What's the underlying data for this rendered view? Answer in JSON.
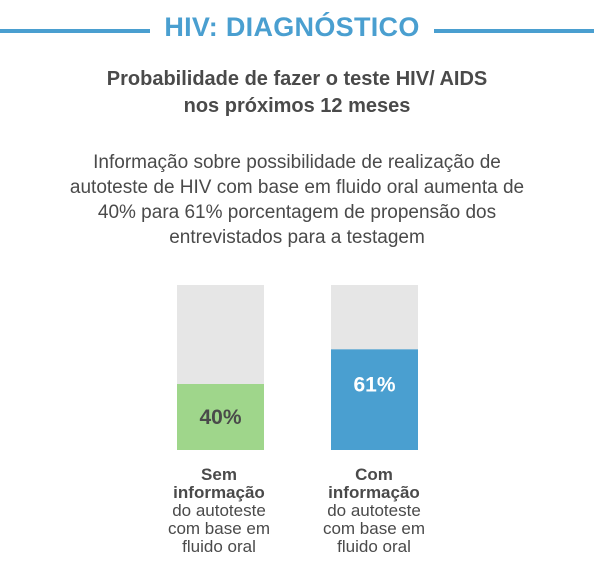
{
  "header": {
    "section_title": "HIV: DIAGNÓSTICO",
    "accent_color": "#4a9fd0"
  },
  "chart_data": {
    "type": "bar",
    "title_lines": [
      "Probabilidade de fazer o teste HIV/ AIDS",
      "nos próximos 12 meses"
    ],
    "subtitle_lines": [
      "Informação sobre possibilidade de realização de",
      "autoteste de HIV com base em fluido oral aumenta de",
      "40% para 61% porcentagem de propensão dos",
      "entrevistados para a testagem"
    ],
    "ylim": [
      0,
      100
    ],
    "track_color": "#e6e6e6",
    "categories": [
      {
        "value": 40,
        "value_label": "40%",
        "color": "#9fd68b",
        "label_color": "#4a4a4a",
        "label_bold_lines": [
          "Sem",
          "informação"
        ],
        "label_lines": [
          "do autoteste",
          "com base em",
          "fluido oral"
        ]
      },
      {
        "value": 61,
        "value_label": "61%",
        "color": "#4a9fd0",
        "label_color": "#ffffff",
        "label_bold_lines": [
          "Com",
          "informação"
        ],
        "label_lines": [
          "do autoteste",
          "com base em",
          "fluido oral"
        ]
      }
    ]
  }
}
